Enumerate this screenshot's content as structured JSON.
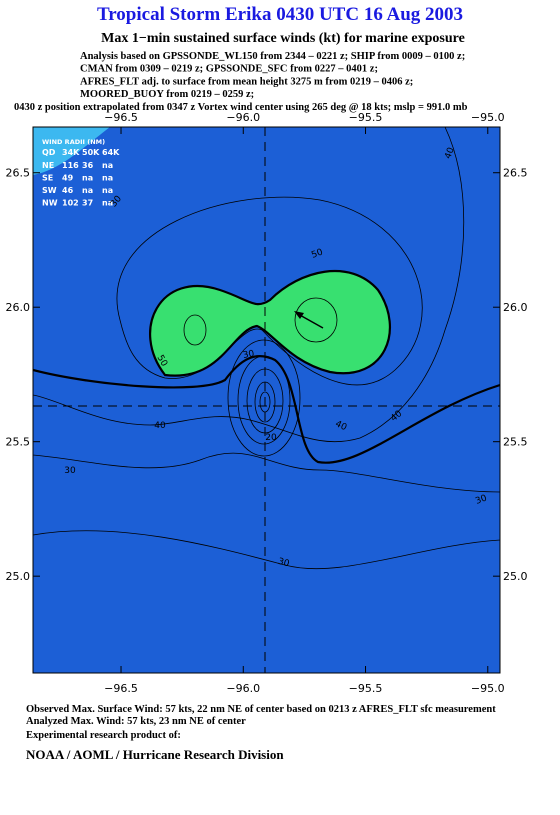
{
  "chart_data": {
    "type": "contour",
    "title": "Tropical Storm Erika 0430 UTC 16 Aug 2003",
    "subtitle": "Max 1−min sustained surface winds (kt) for marine exposure",
    "notes": [
      "Analysis based on  GPSSONDE_WL150 from 2344 – 0221 z;  SHIP from 0009 – 0100 z;",
      "CMAN from 0309 – 0219 z;  GPSSONDE_SFC from 0227 – 0401 z;",
      "AFRES_FLT adj. to surface from mean height 3275 m from  0219 – 0406 z;",
      "MOORED_BUOY from 0219 – 0259 z;",
      "0430 z position extrapolated from 0347 z Vortex wind center using 265 deg @ 18 kts; mslp = 991.0 mb"
    ],
    "xlim": [
      -96.86,
      -94.95
    ],
    "ylim": [
      24.64,
      26.67
    ],
    "xticks": [
      {
        "value": -96.5,
        "label": "−96.5"
      },
      {
        "value": -96.0,
        "label": "−96.0"
      },
      {
        "value": -95.5,
        "label": "−95.5"
      },
      {
        "value": -95.0,
        "label": "−95.0"
      }
    ],
    "yticks": [
      {
        "value": 25.0,
        "label": "25.0"
      },
      {
        "value": 25.5,
        "label": "25.5"
      },
      {
        "value": 26.0,
        "label": "26.0"
      },
      {
        "value": 26.5,
        "label": "26.5"
      }
    ],
    "contour_labels": [
      50,
      50,
      40,
      40,
      40,
      40,
      30,
      30,
      30,
      30,
      30,
      20
    ],
    "wind_radii": {
      "title": "WIND RADII (NM)",
      "header": [
        "QD",
        "34K",
        "50K",
        "64K"
      ],
      "rows": [
        [
          "NE",
          "116",
          "36",
          "na"
        ],
        [
          "SE",
          "49",
          "na",
          "na"
        ],
        [
          "SW",
          "46",
          "na",
          "na"
        ],
        [
          "NW",
          "102",
          "37",
          "na"
        ]
      ]
    },
    "footer": [
      "Observed Max. Surface Wind: 57 kts, 22 nm NE of center based on 0213 z AFRES_FLT sfc measurement",
      "Analyzed Max. Wind: 57 kts, 23 nm NE of center",
      "Experimental research product of:",
      "NOAA / AOML / Hurricane Research Division"
    ]
  }
}
